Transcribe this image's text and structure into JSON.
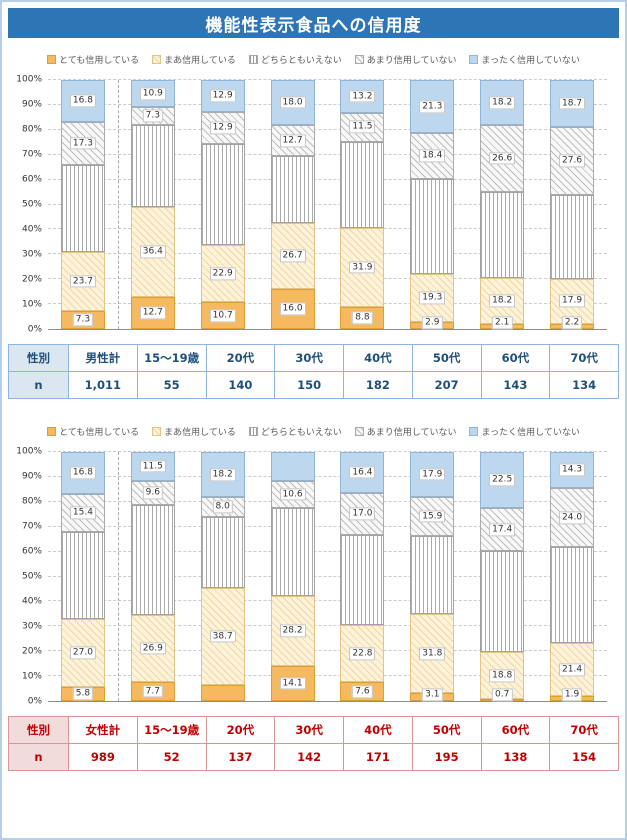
{
  "title": "機能性表示食品への信用度",
  "colors": {
    "banner_bg": "#2e75b6",
    "banner_text": "#ffffff",
    "page_border": "#b7cfe6",
    "male_text": "#1f4e79",
    "male_border": "#8db4e2",
    "male_label_bg": "#dce6f1",
    "female_text": "#c00000",
    "female_border": "#d99694",
    "female_label_bg": "#f2dcdb",
    "seg_very_trust": "#f5b95f",
    "seg_somewhat_trust": "#fdf3da",
    "seg_neither": "#ffffff",
    "seg_little_trust": "#f7f7f7",
    "seg_no_trust": "#bdd7ee"
  },
  "chart_data": [
    {
      "type": "bar",
      "stacked": true,
      "group": "男性",
      "categories": [
        "男性計",
        "15〜19歳",
        "20代",
        "30代",
        "40代",
        "50代",
        "60代",
        "70代"
      ],
      "ylim": [
        0,
        100
      ],
      "yticks": [
        "0%",
        "10%",
        "20%",
        "30%",
        "40%",
        "50%",
        "60%",
        "70%",
        "80%",
        "90%",
        "100%"
      ],
      "grid": "dashed-horizontal-10pct",
      "legend_position": "top-center",
      "series": [
        {
          "name": "とても信用している",
          "values": [
            7.3,
            12.7,
            10.7,
            16.0,
            8.8,
            2.9,
            2.1,
            2.2
          ],
          "labels": [
            "7.3",
            "12.7",
            "10.7",
            "16.0",
            "8.8",
            "2.9",
            "2.1",
            "2.2"
          ]
        },
        {
          "name": "まあ信用している",
          "values": [
            23.7,
            36.4,
            22.9,
            26.7,
            31.9,
            19.3,
            18.2,
            17.9
          ],
          "labels": [
            "23.7",
            "36.4",
            "22.9",
            "26.7",
            "31.9",
            "19.3",
            "18.2",
            "17.9"
          ]
        },
        {
          "name": "どちらともいえない",
          "values": [
            34.9,
            32.7,
            40.6,
            26.6,
            34.6,
            38.1,
            34.9,
            33.6
          ],
          "labels": [
            "",
            "",
            "",
            "",
            "",
            "",
            "",
            ""
          ]
        },
        {
          "name": "あまり信用していない",
          "values": [
            17.3,
            7.3,
            12.9,
            12.7,
            11.5,
            18.4,
            26.6,
            27.6
          ],
          "labels": [
            "17.3",
            "7.3",
            "12.9",
            "12.7",
            "11.5",
            "18.4",
            "26.6",
            "27.6"
          ]
        },
        {
          "name": "まったく信用していない",
          "values": [
            16.8,
            10.9,
            12.9,
            18.0,
            13.2,
            21.3,
            18.2,
            18.7
          ],
          "labels": [
            "16.8",
            "10.9",
            "12.9",
            "18.0",
            "13.2",
            "21.3",
            "18.2",
            "18.7"
          ]
        }
      ]
    },
    {
      "type": "bar",
      "stacked": true,
      "group": "女性",
      "categories": [
        "女性計",
        "15〜19歳",
        "20代",
        "30代",
        "40代",
        "50代",
        "60代",
        "70代"
      ],
      "ylim": [
        0,
        100
      ],
      "yticks": [
        "0%",
        "10%",
        "20%",
        "30%",
        "40%",
        "50%",
        "60%",
        "70%",
        "80%",
        "90%",
        "100%"
      ],
      "grid": "dashed-horizontal-10pct",
      "legend_position": "top-center",
      "series": [
        {
          "name": "とても信用している",
          "values": [
            5.8,
            7.7,
            6.6,
            14.1,
            7.6,
            3.1,
            0.7,
            1.9
          ],
          "labels": [
            "5.8",
            "7.7",
            "",
            "14.1",
            "7.6",
            "3.1",
            "0.7",
            "1.9"
          ]
        },
        {
          "name": "まあ信用している",
          "values": [
            27.0,
            26.9,
            38.7,
            28.2,
            22.8,
            31.8,
            18.8,
            21.4
          ],
          "labels": [
            "27.0",
            "26.9",
            "38.7",
            "28.2",
            "22.8",
            "31.8",
            "18.8",
            "21.4"
          ]
        },
        {
          "name": "どちらともいえない",
          "values": [
            35.0,
            44.3,
            28.5,
            35.4,
            36.2,
            31.3,
            40.6,
            38.4
          ],
          "labels": [
            "",
            "",
            "",
            "",
            "",
            "",
            "",
            ""
          ]
        },
        {
          "name": "あまり信用していない",
          "values": [
            15.4,
            9.6,
            8.0,
            10.6,
            17.0,
            15.9,
            17.4,
            24.0
          ],
          "labels": [
            "15.4",
            "9.6",
            "8.0",
            "10.6",
            "17.0",
            "15.9",
            "17.4",
            "24.0"
          ]
        },
        {
          "name": "まったく信用していない",
          "values": [
            16.8,
            11.5,
            18.2,
            11.7,
            16.4,
            17.9,
            22.5,
            14.3
          ],
          "labels": [
            "16.8",
            "11.5",
            "18.2",
            "",
            "16.4",
            "17.9",
            "22.5",
            "14.3"
          ]
        }
      ]
    }
  ],
  "tables": [
    {
      "theme": "blue",
      "row_header": "性別",
      "n_header": "n",
      "columns": [
        "男性計",
        "15〜19歳",
        "20代",
        "30代",
        "40代",
        "50代",
        "60代",
        "70代"
      ],
      "n_values": [
        "1,011",
        "55",
        "140",
        "150",
        "182",
        "207",
        "143",
        "134"
      ]
    },
    {
      "theme": "red",
      "row_header": "性別",
      "n_header": "n",
      "columns": [
        "女性計",
        "15〜19歳",
        "20代",
        "30代",
        "40代",
        "50代",
        "60代",
        "70代"
      ],
      "n_values": [
        "989",
        "52",
        "137",
        "142",
        "171",
        "195",
        "138",
        "154"
      ]
    }
  ]
}
